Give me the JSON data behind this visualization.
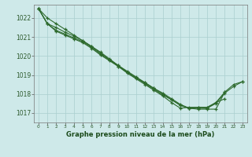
{
  "title": "Graphe pression niveau de la mer (hPa)",
  "xlabel_hours": [
    0,
    1,
    2,
    3,
    4,
    5,
    6,
    7,
    8,
    9,
    10,
    11,
    12,
    13,
    14,
    15,
    16,
    17,
    18,
    19,
    20,
    21,
    22,
    23
  ],
  "ylim": [
    1016.5,
    1022.7
  ],
  "yticks": [
    1017,
    1018,
    1019,
    1020,
    1021,
    1022
  ],
  "background_color": "#cee9e9",
  "grid_color": "#aacfcf",
  "line_color": "#2d6a2d",
  "title_color": "#1a4a1a",
  "tick_color": "#2d5a2d",
  "series": [
    [
      1022.5,
      1022.0,
      1021.7,
      1021.4,
      1021.1,
      1020.8,
      1020.5,
      1020.2,
      1019.85,
      1019.5,
      1019.2,
      1018.9,
      1018.6,
      1018.3,
      1018.0,
      1017.7,
      1017.4,
      1017.25,
      1017.2,
      1017.2,
      1017.2,
      1018.1,
      null,
      null
    ],
    [
      1022.5,
      1021.7,
      1021.5,
      1021.25,
      1021.05,
      1020.8,
      1020.5,
      1020.15,
      1019.8,
      1019.45,
      1019.1,
      1018.8,
      1018.5,
      1018.2,
      1017.9,
      1017.55,
      1017.25,
      1017.3,
      1017.3,
      1017.3,
      1017.55,
      1017.75,
      null,
      null
    ],
    [
      1022.5,
      1021.7,
      1021.35,
      1021.15,
      1020.95,
      1020.75,
      1020.45,
      1020.1,
      1019.8,
      1019.5,
      1019.15,
      1018.85,
      1018.6,
      1018.3,
      1018.05,
      1017.75,
      1017.45,
      1017.25,
      1017.3,
      1017.25,
      1017.55,
      1018.1,
      1018.5,
      1018.65
    ],
    [
      1022.5,
      1021.7,
      1021.3,
      1021.1,
      1020.9,
      1020.7,
      1020.4,
      1020.05,
      1019.75,
      1019.45,
      1019.15,
      1018.85,
      1018.55,
      1018.25,
      1017.95,
      1017.7,
      1017.4,
      1017.25,
      1017.25,
      1017.25,
      1017.5,
      1018.05,
      1018.4,
      1018.65
    ]
  ]
}
